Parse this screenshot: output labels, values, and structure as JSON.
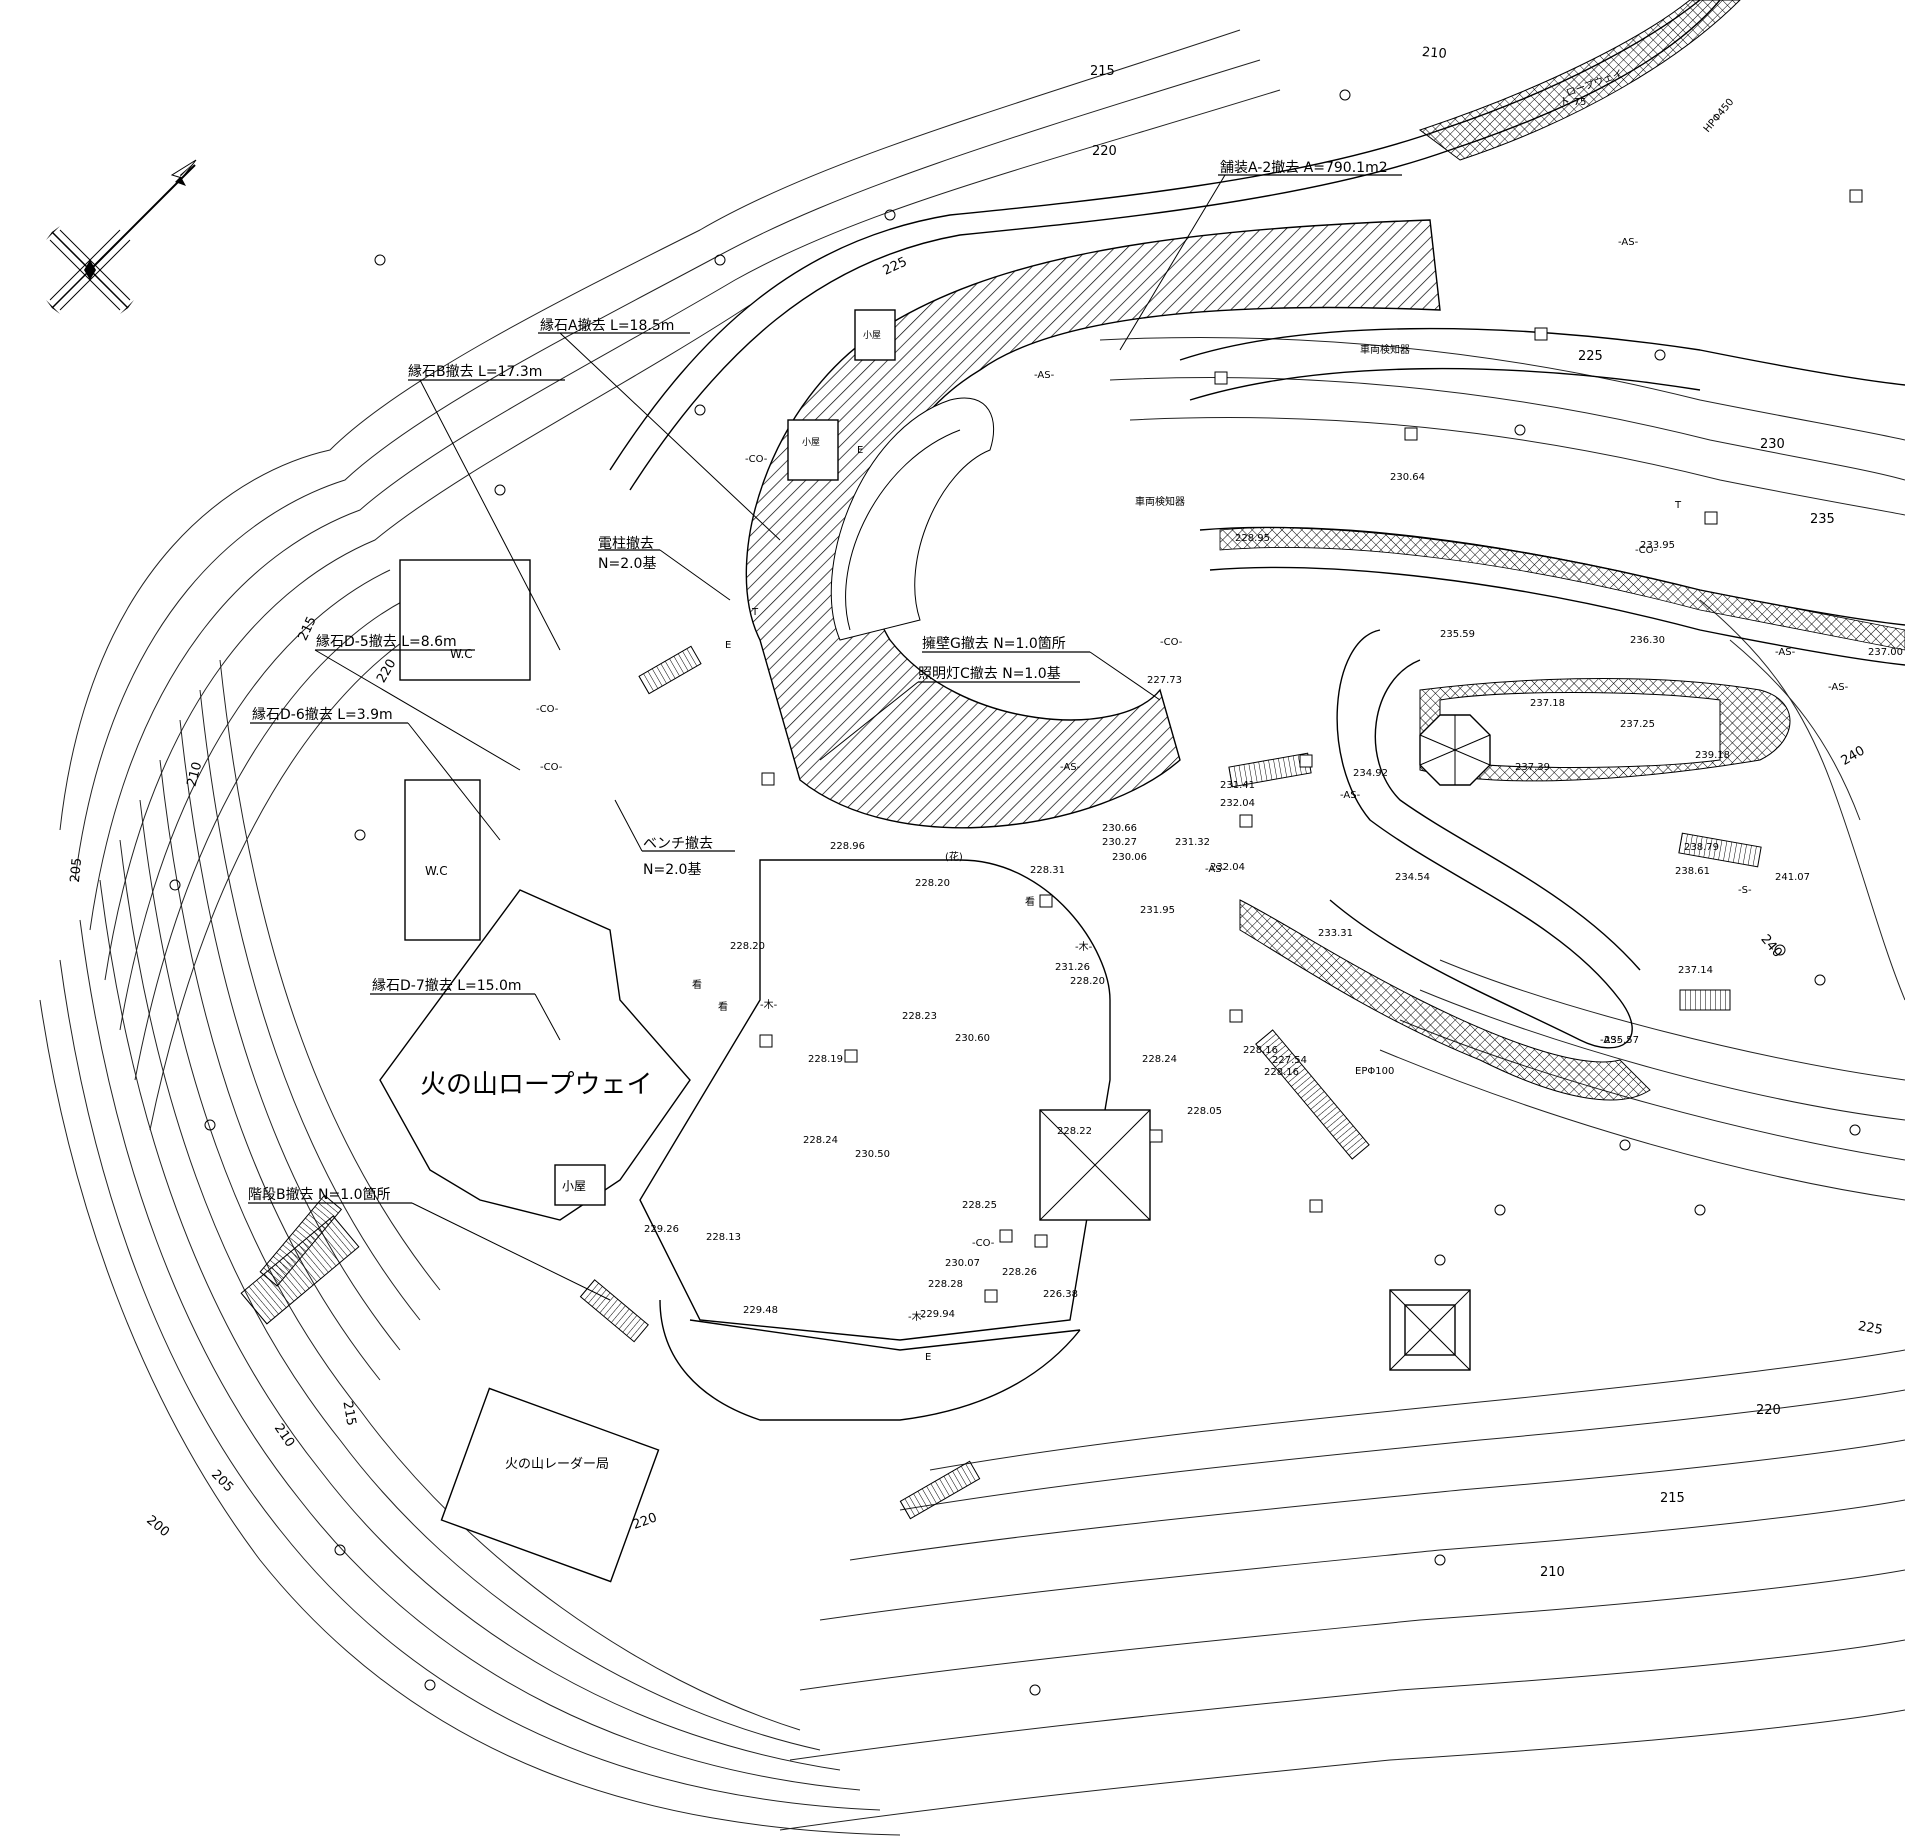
{
  "title": "火の山ロープウェイ",
  "radar_building": "火の山レーダー局",
  "wc_labels": [
    "W.C",
    "W.C"
  ],
  "hut_labels": [
    "小屋",
    "小屋",
    "小屋"
  ],
  "notes": {
    "paving": "舗装A-2撤去 A=790.1m2",
    "curb_a": "縁石A撤去 L=18.5m",
    "curb_b": "縁石B撤去 L=17.3m",
    "pole_1": "電柱撤去",
    "pole_2": "N=2.0基",
    "curb_d5": "縁石D-5撤去 L=8.6m",
    "curb_d6": "縁石D-6撤去 L=3.9m",
    "bench_1": "ベンチ撤去",
    "bench_2": "N=2.0基",
    "wall_g": "擁壁G撤去 N=1.0箇所",
    "light_c": "照明灯C撤去 N=1.0基",
    "curb_d7": "縁石D-7撤去 L=15.0m",
    "stairs_b": "階段B撤去 N=1.0箇所"
  },
  "contour_labels": {
    "c215_top": "215",
    "c210_top": "210",
    "c220_top": "220",
    "c225_left": "225",
    "c225_mid": "225",
    "c230": "230",
    "c235": "235",
    "c240_a": "240",
    "c240_b": "240",
    "c225_right": "225",
    "c220_bottom": "220",
    "c215_bottom": "215",
    "c210_bottom": "210",
    "c215_left": "215",
    "c220_left": "220",
    "c210_left": "210",
    "c205_left": "205",
    "c215_lower": "215",
    "c210_lower": "210",
    "c205_lower": "205",
    "c200_lower": "200",
    "c220_lower": "220"
  },
  "elevations": [
    "230.64",
    "233.95",
    "228.95",
    "235.59",
    "236.30",
    "237.00",
    "227.73",
    "237.18",
    "237.25",
    "237.39",
    "239.18",
    "234.92",
    "231.41",
    "232.04",
    "230.66",
    "230.27",
    "230.06",
    "231.32",
    "232.04",
    "228.31",
    "231.95",
    "234.54",
    "233.31",
    "238.79",
    "238.61",
    "241.07",
    "237.14",
    "235.57",
    "228.96",
    "228.20",
    "228.20",
    "231.26",
    "228.20",
    "228.23",
    "230.60",
    "228.19",
    "228.24",
    "230.50",
    "228.22",
    "228.24",
    "228.05",
    "228.16",
    "227.54",
    "228.16",
    "228.25",
    "228.13",
    "229.26",
    "230.07",
    "228.28",
    "228.26",
    "226.38",
    "229.48",
    "229.94"
  ],
  "small_labels": {
    "ropeway": "ロープウェイ",
    "ropeway_no": "ト-75",
    "vehicle_detector_1": "車両検知器",
    "vehicle_detector_2": "車両検知器",
    "hp450": "HPΦ450",
    "ep100": "EPΦ100",
    "flower": "(花)",
    "sign_1": "看",
    "sign_2": "看",
    "sign_3": "看",
    "as_1": "-AS-",
    "as_2": "-AS-",
    "as_3": "-AS-",
    "as_4": "-AS-",
    "as_5": "-AS-",
    "as_6": "-AS-",
    "as_7": "-AS-",
    "as_8": "-AS-",
    "co_1": "-CO-",
    "co_2": "-CO-",
    "co_3": "-CO-",
    "co_4": "-CO-",
    "co_5": "-CO-",
    "co_6": "-CO-",
    "wood_1": "-木-",
    "wood_2": "-木-",
    "wood_3": "-木-",
    "s_1": "-S-",
    "e_1": "E",
    "e_2": "E",
    "e_3": "E",
    "t_1": "T",
    "t_2": "T"
  }
}
